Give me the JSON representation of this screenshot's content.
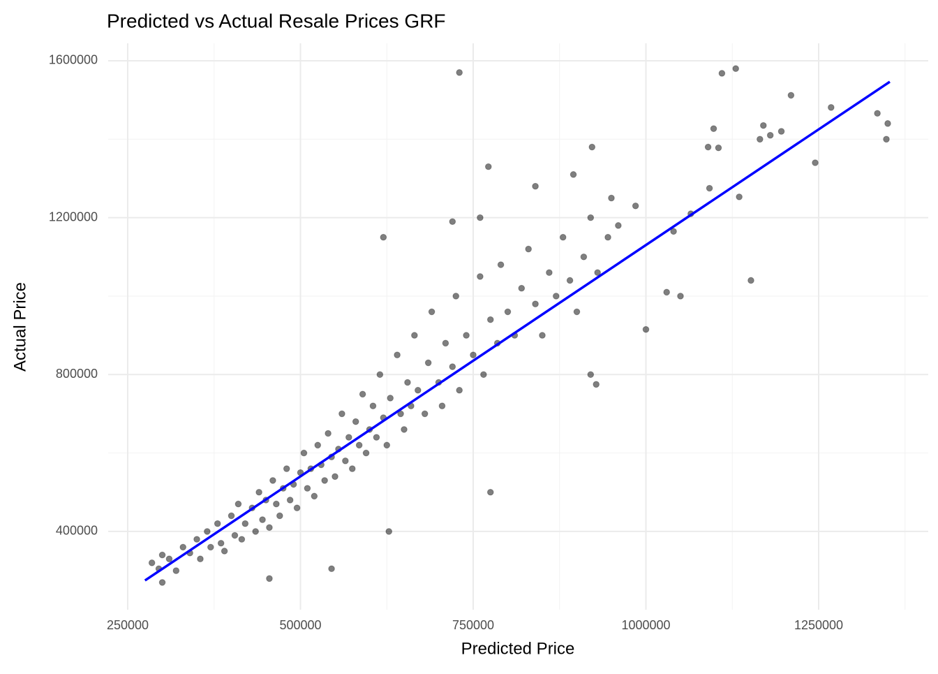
{
  "chart_data": {
    "type": "scatter",
    "title": "Predicted vs Actual Resale Prices GRF",
    "x_label": "Predicted Price",
    "y_label": "Actual Price",
    "xlim": [
      221700,
      1408600
    ],
    "ylim": [
      200400,
      1644500
    ],
    "xticks": [
      250000,
      500000,
      750000,
      1000000,
      1250000
    ],
    "yticks": [
      400000,
      800000,
      1200000,
      1600000
    ],
    "x_minor_ticks": [
      375000,
      625000,
      875000,
      1125000,
      1375000
    ],
    "y_minor_ticks": [
      600000,
      1000000,
      1400000
    ],
    "grid": true,
    "series": [
      {
        "type": "scatter",
        "color": "#000000",
        "opacity": 0.5,
        "x": [
          730000,
          1130000,
          1110000,
          1210000,
          1268000,
          1335000,
          1350000,
          1348000,
          1098000,
          1170000,
          1180000,
          1196000,
          1165000,
          1090000,
          1105000,
          922000,
          772000,
          1245000,
          1135000,
          1092000,
          1152000,
          1000000,
          1030000,
          1050000,
          620000,
          775000,
          628000,
          545000,
          455000,
          300000,
          920000,
          928000,
          1065000,
          1040000,
          985000,
          950000,
          840000,
          895000,
          720000,
          760000,
          285000,
          295000,
          300000,
          310000,
          320000,
          330000,
          340000,
          350000,
          355000,
          365000,
          370000,
          380000,
          385000,
          390000,
          400000,
          405000,
          410000,
          415000,
          420000,
          430000,
          435000,
          440000,
          445000,
          450000,
          455000,
          460000,
          465000,
          470000,
          475000,
          480000,
          485000,
          490000,
          495000,
          500000,
          505000,
          510000,
          515000,
          520000,
          525000,
          530000,
          535000,
          540000,
          545000,
          550000,
          555000,
          560000,
          565000,
          570000,
          575000,
          580000,
          585000,
          590000,
          595000,
          600000,
          605000,
          610000,
          615000,
          620000,
          625000,
          630000,
          640000,
          645000,
          650000,
          655000,
          660000,
          665000,
          670000,
          680000,
          685000,
          690000,
          700000,
          705000,
          710000,
          720000,
          725000,
          730000,
          740000,
          750000,
          760000,
          765000,
          775000,
          785000,
          790000,
          800000,
          810000,
          820000,
          830000,
          840000,
          850000,
          860000,
          870000,
          880000,
          890000,
          900000,
          910000,
          920000,
          930000,
          945000,
          960000
        ],
        "y": [
          1570000,
          1580000,
          1568000,
          1512000,
          1481000,
          1466000,
          1440000,
          1400000,
          1427000,
          1435000,
          1410000,
          1420000,
          1400000,
          1380000,
          1378000,
          1380000,
          1330000,
          1340000,
          1253000,
          1275000,
          1040000,
          915000,
          1010000,
          1000000,
          1150000,
          500000,
          400000,
          305000,
          280000,
          270000,
          800000,
          775000,
          1210000,
          1165000,
          1230000,
          1250000,
          1280000,
          1310000,
          1190000,
          1200000,
          320000,
          305000,
          340000,
          330000,
          300000,
          360000,
          345000,
          380000,
          330000,
          400000,
          360000,
          420000,
          370000,
          350000,
          440000,
          390000,
          470000,
          380000,
          420000,
          460000,
          400000,
          500000,
          430000,
          480000,
          410000,
          530000,
          470000,
          440000,
          510000,
          560000,
          480000,
          520000,
          460000,
          550000,
          600000,
          510000,
          560000,
          490000,
          620000,
          570000,
          530000,
          650000,
          590000,
          540000,
          610000,
          700000,
          580000,
          640000,
          560000,
          680000,
          620000,
          750000,
          600000,
          660000,
          720000,
          640000,
          800000,
          690000,
          620000,
          740000,
          850000,
          700000,
          660000,
          780000,
          720000,
          900000,
          760000,
          700000,
          830000,
          960000,
          780000,
          720000,
          880000,
          820000,
          1000000,
          760000,
          900000,
          850000,
          1050000,
          800000,
          940000,
          880000,
          1080000,
          960000,
          900000,
          1020000,
          1120000,
          980000,
          900000,
          1060000,
          1000000,
          1150000,
          1040000,
          960000,
          1100000,
          1200000,
          1060000,
          1150000,
          1180000
        ]
      },
      {
        "type": "line",
        "color": "#0000ff",
        "x": [
          275000,
          1353000
        ],
        "y": [
          275000,
          1546500
        ]
      }
    ]
  }
}
